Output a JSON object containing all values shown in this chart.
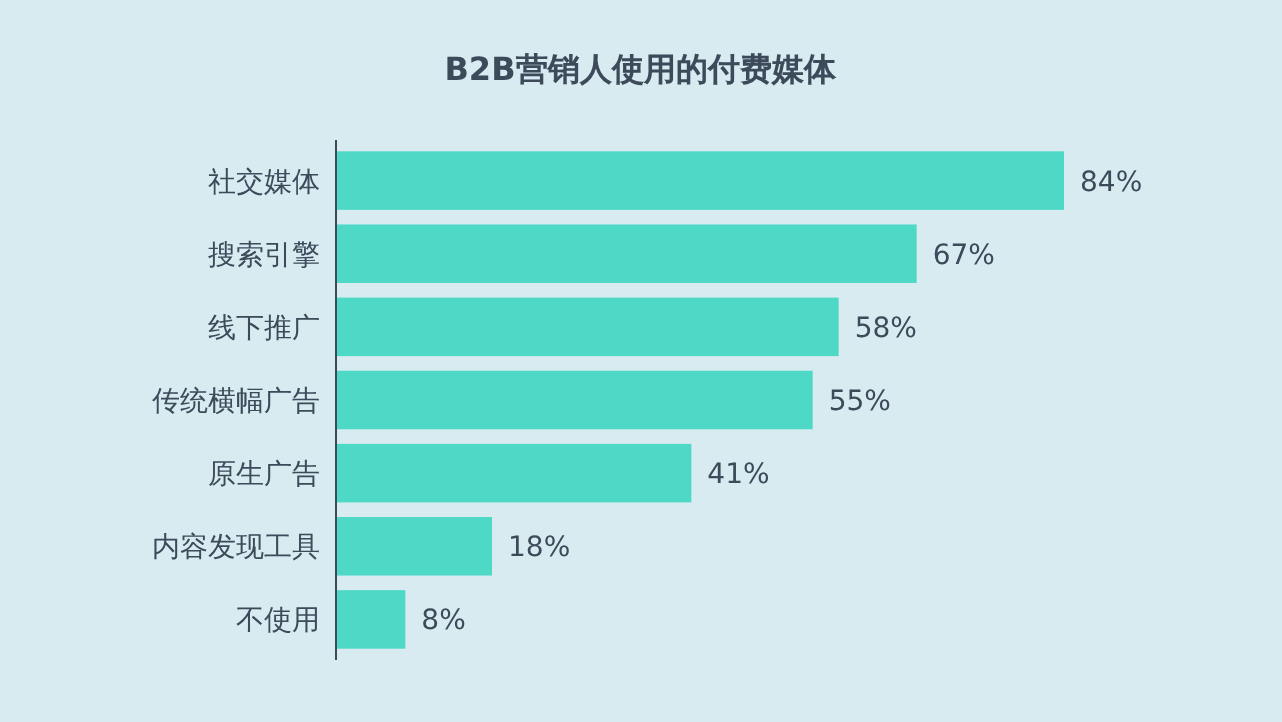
{
  "chart_data": {
    "type": "bar",
    "orientation": "horizontal",
    "title": "B2B营销人使用的付费媒体",
    "categories": [
      "社交媒体",
      "搜索引擎",
      "线下推广",
      "传统横幅广告",
      "原生广告",
      "内容发现工具",
      "不使用"
    ],
    "values": [
      84,
      67,
      58,
      55,
      41,
      18,
      8
    ],
    "value_labels": [
      "84%",
      "67%",
      "58%",
      "55%",
      "41%",
      "18%",
      "8%"
    ],
    "color": "#4dd9c6"
  }
}
